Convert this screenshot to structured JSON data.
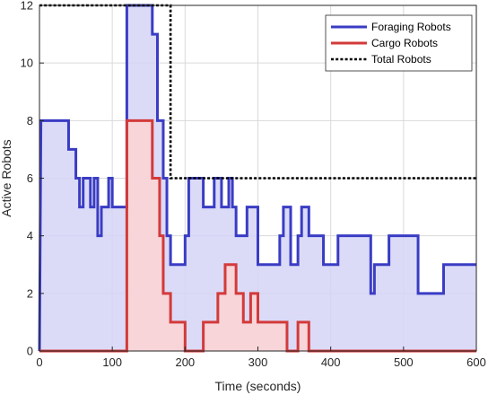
{
  "chart_data": {
    "type": "line",
    "title": "",
    "xlabel": "Time (seconds)",
    "ylabel": "Active Robots",
    "xlim": [
      0,
      600
    ],
    "ylim": [
      0,
      12
    ],
    "xticks": [
      0,
      100,
      200,
      300,
      400,
      500,
      600
    ],
    "yticks": [
      0,
      2,
      4,
      6,
      8,
      10,
      12
    ],
    "grid": true,
    "legend_position": "top-right",
    "legend": [
      {
        "label": "Foraging Robots",
        "style": "solid",
        "color": "#3a3cc4"
      },
      {
        "label": "Cargo Robots",
        "style": "solid",
        "color": "#d33a3a"
      },
      {
        "label": "Total Robots",
        "style": "dotted",
        "color": "#000000"
      }
    ],
    "series": [
      {
        "name": "Foraging Robots",
        "color": "#3a3cc4",
        "fill": "#d5d5f7",
        "step": true,
        "x": [
          0,
          2,
          40,
          40,
          50,
          50,
          55,
          55,
          60,
          60,
          70,
          70,
          75,
          75,
          80,
          80,
          85,
          85,
          95,
          95,
          100,
          100,
          120,
          120,
          155,
          155,
          162,
          162,
          170,
          170,
          175,
          175,
          180,
          180,
          200,
          200,
          205,
          205,
          225,
          225,
          240,
          240,
          250,
          250,
          260,
          260,
          265,
          265,
          270,
          270,
          285,
          285,
          300,
          300,
          330,
          330,
          335,
          335,
          345,
          345,
          355,
          355,
          360,
          360,
          370,
          370,
          390,
          390,
          410,
          410,
          455,
          455,
          460,
          460,
          480,
          480,
          520,
          520,
          555,
          555,
          600
        ],
        "y": [
          0,
          8,
          8,
          7,
          7,
          6,
          6,
          5,
          5,
          6,
          6,
          5,
          5,
          6,
          6,
          4,
          4,
          5,
          5,
          6,
          6,
          5,
          5,
          12,
          12,
          11,
          11,
          8,
          8,
          6,
          6,
          4,
          4,
          3,
          3,
          4,
          4,
          6,
          6,
          5,
          5,
          6,
          6,
          5,
          5,
          6,
          6,
          5,
          5,
          4,
          4,
          5,
          5,
          3,
          3,
          4,
          4,
          5,
          5,
          3,
          3,
          4,
          4,
          5,
          5,
          4,
          4,
          3,
          3,
          4,
          4,
          2,
          2,
          3,
          3,
          4,
          4,
          2,
          2,
          3,
          3
        ]
      },
      {
        "name": "Cargo Robots",
        "color": "#d33a3a",
        "fill": "#fbd3d3",
        "step": true,
        "x": [
          0,
          120,
          120,
          155,
          155,
          165,
          165,
          170,
          170,
          180,
          180,
          200,
          200,
          225,
          225,
          245,
          245,
          255,
          255,
          270,
          270,
          280,
          280,
          290,
          290,
          300,
          300,
          340,
          340,
          355,
          355,
          370,
          370,
          400,
          400,
          600
        ],
        "y": [
          0,
          0,
          8,
          8,
          6,
          6,
          4,
          4,
          2,
          2,
          1,
          1,
          0,
          0,
          1,
          1,
          2,
          2,
          3,
          3,
          2,
          2,
          1,
          1,
          2,
          2,
          1,
          1,
          0,
          0,
          1,
          1,
          0,
          0,
          0,
          0
        ]
      },
      {
        "name": "Total Robots",
        "color": "#000000",
        "step": true,
        "x": [
          0,
          180,
          180,
          600
        ],
        "y": [
          12,
          12,
          6,
          6
        ]
      }
    ]
  }
}
